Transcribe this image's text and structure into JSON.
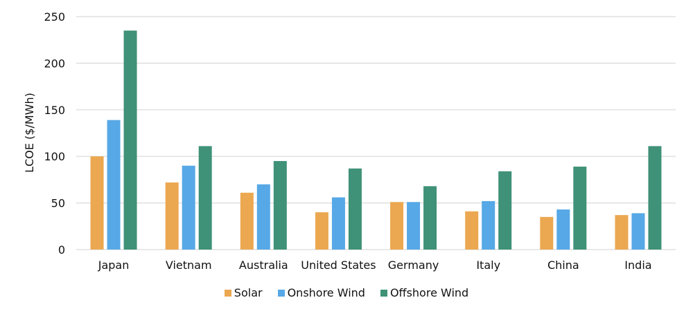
{
  "chart_data": {
    "type": "bar",
    "title": "",
    "xlabel": "",
    "ylabel": "LCOE ($/MWh)",
    "ylim": [
      0,
      250
    ],
    "yticks": [
      0,
      50,
      100,
      150,
      200,
      250
    ],
    "grid": true,
    "legend_position": "bottom",
    "categories": [
      "Japan",
      "Vietnam",
      "Australia",
      "United States",
      "Germany",
      "Italy",
      "China",
      "India"
    ],
    "series": [
      {
        "name": "Solar",
        "color": "#EBA851",
        "values": [
          100,
          72,
          61,
          40,
          51,
          41,
          35,
          37
        ]
      },
      {
        "name": "Onshore Wind",
        "color": "#57A8E6",
        "values": [
          139,
          90,
          70,
          56,
          51,
          52,
          43,
          39
        ]
      },
      {
        "name": "Offshore Wind",
        "color": "#3F9177",
        "values": [
          235,
          111,
          95,
          87,
          68,
          84,
          89,
          111
        ]
      }
    ]
  }
}
